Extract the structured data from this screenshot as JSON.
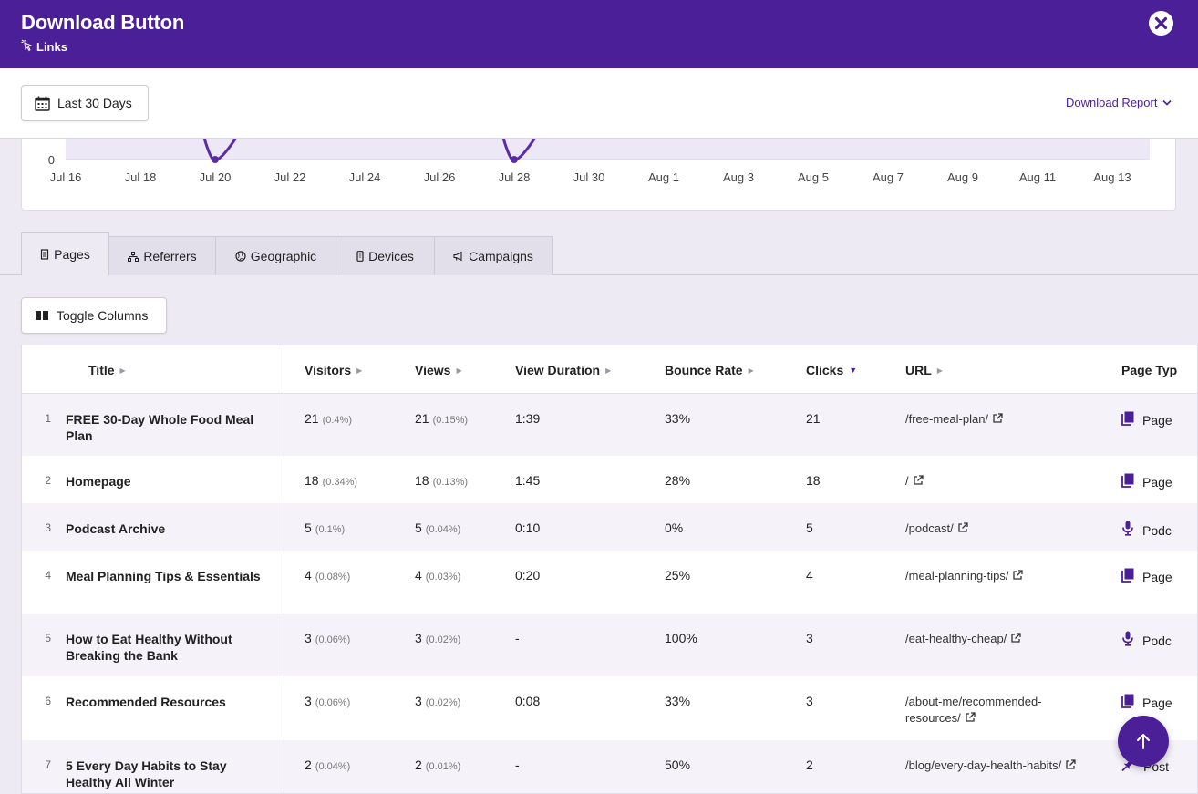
{
  "header": {
    "title": "Download Button",
    "subtitle": "Links"
  },
  "toolbar": {
    "date_range_label": "Last 30 Days",
    "download_report_label": "Download Report"
  },
  "chart_data": {
    "type": "line",
    "x_tick_labels": [
      "Jul 16",
      "Jul 18",
      "Jul 20",
      "Jul 22",
      "Jul 24",
      "Jul 26",
      "Jul 28",
      "Jul 30",
      "Aug 1",
      "Aug 3",
      "Aug 5",
      "Aug 7",
      "Aug 9",
      "Aug 11",
      "Aug 13"
    ],
    "y_tick_labels": [
      "0"
    ],
    "visible_points": [
      {
        "x": "Jul 20",
        "y": 0
      },
      {
        "x": "Jul 28",
        "y": 0
      }
    ],
    "line_color": "#5b2ca8",
    "fill_color": "#ede8f5",
    "grid": true
  },
  "tabs": [
    {
      "label": "Pages",
      "icon": "document-icon",
      "active": true
    },
    {
      "label": "Referrers",
      "icon": "sitemap-icon",
      "active": false
    },
    {
      "label": "Geographic",
      "icon": "globe-icon",
      "active": false
    },
    {
      "label": "Devices",
      "icon": "mobile-icon",
      "active": false
    },
    {
      "label": "Campaigns",
      "icon": "megaphone-icon",
      "active": false
    }
  ],
  "toggle_columns_label": "Toggle Columns",
  "table": {
    "columns": [
      "Title",
      "Visitors",
      "Views",
      "View Duration",
      "Bounce Rate",
      "Clicks",
      "URL",
      "Page Typ"
    ],
    "sorted_column": "Clicks",
    "rows": [
      {
        "num": "1",
        "title": "FREE 30-Day Whole Food Meal Plan",
        "visitors": "21",
        "visitors_pct": "(0.4%)",
        "views": "21",
        "views_pct": "(0.15%)",
        "duration": "1:39",
        "bounce": "33%",
        "clicks": "21",
        "url": "/free-meal-plan/",
        "type": "Page",
        "type_icon": "page-icon"
      },
      {
        "num": "2",
        "title": "Homepage",
        "visitors": "18",
        "visitors_pct": "(0.34%)",
        "views": "18",
        "views_pct": "(0.13%)",
        "duration": "1:45",
        "bounce": "28%",
        "clicks": "18",
        "url": "/",
        "type": "Page",
        "type_icon": "page-icon"
      },
      {
        "num": "3",
        "title": "Podcast Archive",
        "visitors": "5",
        "visitors_pct": "(0.1%)",
        "views": "5",
        "views_pct": "(0.04%)",
        "duration": "0:10",
        "bounce": "0%",
        "clicks": "5",
        "url": "/podcast/",
        "type": "Podc",
        "type_icon": "microphone-icon"
      },
      {
        "num": "4",
        "title": "Meal Planning Tips & Essentials",
        "visitors": "4",
        "visitors_pct": "(0.08%)",
        "views": "4",
        "views_pct": "(0.03%)",
        "duration": "0:20",
        "bounce": "25%",
        "clicks": "4",
        "url": "/meal-planning-tips/",
        "type": "Page",
        "type_icon": "page-icon"
      },
      {
        "num": "5",
        "title": "How to Eat Healthy Without Breaking the Bank",
        "visitors": "3",
        "visitors_pct": "(0.06%)",
        "views": "3",
        "views_pct": "(0.02%)",
        "duration": "-",
        "bounce": "100%",
        "clicks": "3",
        "url": "/eat-healthy-cheap/",
        "type": "Podc",
        "type_icon": "microphone-icon"
      },
      {
        "num": "6",
        "title": "Recommended Resources",
        "visitors": "3",
        "visitors_pct": "(0.06%)",
        "views": "3",
        "views_pct": "(0.02%)",
        "duration": "0:08",
        "bounce": "33%",
        "clicks": "3",
        "url": "/about-me/recommended-resources/",
        "type": "Page",
        "type_icon": "page-icon"
      },
      {
        "num": "7",
        "title": "5 Every Day Habits to Stay Healthy All Winter",
        "visitors": "2",
        "visitors_pct": "(0.04%)",
        "views": "2",
        "views_pct": "(0.01%)",
        "duration": "-",
        "bounce": "50%",
        "clicks": "2",
        "url": "/blog/every-day-health-habits/",
        "type": "Post",
        "type_icon": "pin-icon"
      }
    ]
  },
  "colors": {
    "brand": "#4a1f98",
    "line": "#5b2ca8",
    "background": "#edeaf3"
  }
}
